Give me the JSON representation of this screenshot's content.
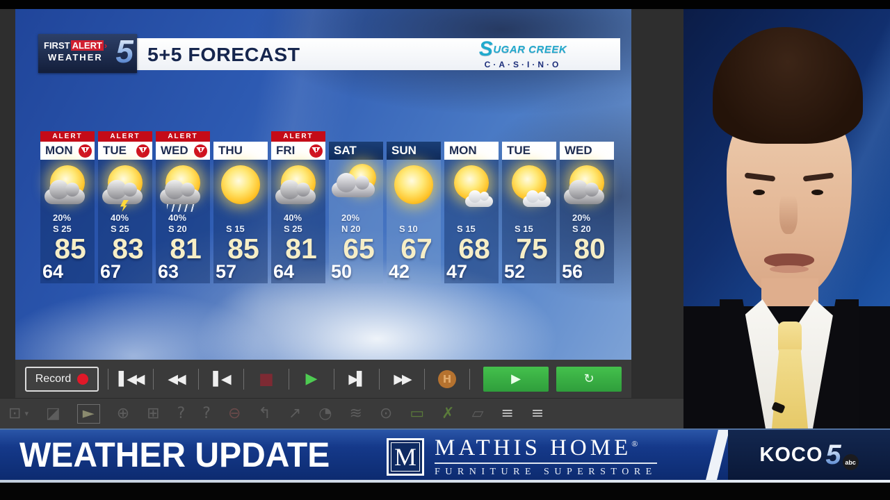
{
  "gfx_header": {
    "brand": {
      "first": "FIRST",
      "alert": "ALERT",
      "chevron": "›",
      "weather": "WEATHER",
      "five": "5"
    },
    "title": "5+5 FORECAST",
    "sponsor": {
      "s": "S",
      "line1_rest": "UGAR CREEK",
      "line2": "C·A·S·I·N·O"
    }
  },
  "forecast": {
    "alert_label": "ALERT",
    "days": [
      {
        "label": "MON",
        "alert": true,
        "weekend": false,
        "icon": "sun-cloud",
        "pop": "20%",
        "wind": "S 25",
        "high": "85",
        "low": "64"
      },
      {
        "label": "TUE",
        "alert": true,
        "weekend": false,
        "icon": "storm",
        "pop": "40%",
        "wind": "S 25",
        "high": "83",
        "low": "67"
      },
      {
        "label": "WED",
        "alert": true,
        "weekend": false,
        "icon": "rain",
        "pop": "40%",
        "wind": "S 20",
        "high": "81",
        "low": "63"
      },
      {
        "label": "THU",
        "alert": false,
        "weekend": false,
        "icon": "sunny",
        "pop": "",
        "wind": "S 15",
        "high": "85",
        "low": "57"
      },
      {
        "label": "FRI",
        "alert": true,
        "weekend": false,
        "icon": "sun-cloud",
        "pop": "40%",
        "wind": "S 25",
        "high": "81",
        "low": "64"
      },
      {
        "label": "SAT",
        "alert": false,
        "weekend": true,
        "icon": "mostly-cloudy",
        "pop": "20%",
        "wind": "N 20",
        "high": "65",
        "low": "50"
      },
      {
        "label": "SUN",
        "alert": false,
        "weekend": true,
        "icon": "sunny",
        "pop": "",
        "wind": "S 10",
        "high": "67",
        "low": "42"
      },
      {
        "label": "MON",
        "alert": false,
        "weekend": false,
        "icon": "sun-small-cloud",
        "pop": "",
        "wind": "S 15",
        "high": "68",
        "low": "47"
      },
      {
        "label": "TUE",
        "alert": false,
        "weekend": false,
        "icon": "sun-small-cloud",
        "pop": "",
        "wind": "S 15",
        "high": "75",
        "low": "52"
      },
      {
        "label": "WED",
        "alert": false,
        "weekend": false,
        "icon": "sun-cloud",
        "pop": "20%",
        "wind": "S 20",
        "high": "80",
        "low": "56"
      }
    ]
  },
  "transport": {
    "record_label": "Record",
    "buttons": [
      {
        "name": "skip-to-start-button",
        "glyph": "▌◀◀",
        "cls": ""
      },
      {
        "name": "rewind-button",
        "glyph": "◀◀",
        "cls": ""
      },
      {
        "name": "step-back-button",
        "glyph": "▌◀",
        "cls": ""
      },
      {
        "name": "stop-button",
        "glyph": "■",
        "cls": "stop"
      },
      {
        "name": "play-button",
        "glyph": "▶",
        "cls": "play"
      },
      {
        "name": "step-forward-button",
        "glyph": "▶▌",
        "cls": ""
      },
      {
        "name": "fast-forward-button",
        "glyph": "▶▶",
        "cls": ""
      },
      {
        "name": "hold-button",
        "glyph": "H",
        "cls": "hbtn"
      }
    ],
    "run_label": "▶",
    "loop_label": "↻"
  },
  "toolbar": {
    "icons": [
      {
        "name": "window-icon",
        "glyph": "⊡"
      },
      {
        "name": "dropdown-caret-icon",
        "glyph": "▾",
        "small": true
      },
      {
        "name": "eraser-icon",
        "glyph": "◪"
      },
      {
        "name": "cursor-icon",
        "glyph": "►",
        "sel": true
      },
      {
        "name": "globe-hand-icon",
        "glyph": "⊕"
      },
      {
        "name": "globe-folder-icon",
        "glyph": "⊞"
      },
      {
        "name": "help-icon",
        "glyph": "?"
      },
      {
        "name": "off-help-icon",
        "glyph": "?"
      },
      {
        "name": "wine-icon",
        "glyph": "⊖",
        "color": "#6a4a4a"
      },
      {
        "name": "path-icon",
        "glyph": "↰"
      },
      {
        "name": "arrow-icon",
        "glyph": "↗"
      },
      {
        "name": "radar-icon",
        "glyph": "◔"
      },
      {
        "name": "waves-icon",
        "glyph": "≋"
      },
      {
        "name": "sun-marker-icon",
        "glyph": "⊙"
      },
      {
        "name": "rect-icon",
        "glyph": "▭",
        "color": "#5a7a3a"
      },
      {
        "name": "cut-icon",
        "glyph": "✗",
        "color": "#5a7a3a"
      },
      {
        "name": "ruler-icon",
        "glyph": "▱"
      },
      {
        "name": "list-icon",
        "glyph": "≡",
        "bright": true
      },
      {
        "name": "menu-icon",
        "glyph": "≡",
        "bright": true
      }
    ]
  },
  "banner": {
    "headline": "WEATHER UPDATE",
    "mathis": {
      "monogram": "M",
      "name": "MATHIS HOME",
      "registered": "®",
      "tagline": "FURNITURE  SUPERSTORE"
    },
    "koco": {
      "call": "KOCO",
      "five": "5",
      "abc": "abc"
    }
  },
  "colors": {
    "alert_red": "#c40b18",
    "banner_blue": "#0c2a6e",
    "button_green": "#3fbf4f",
    "temp_cream": "#f6eec6",
    "sponsor_cyan": "#21aacd"
  }
}
